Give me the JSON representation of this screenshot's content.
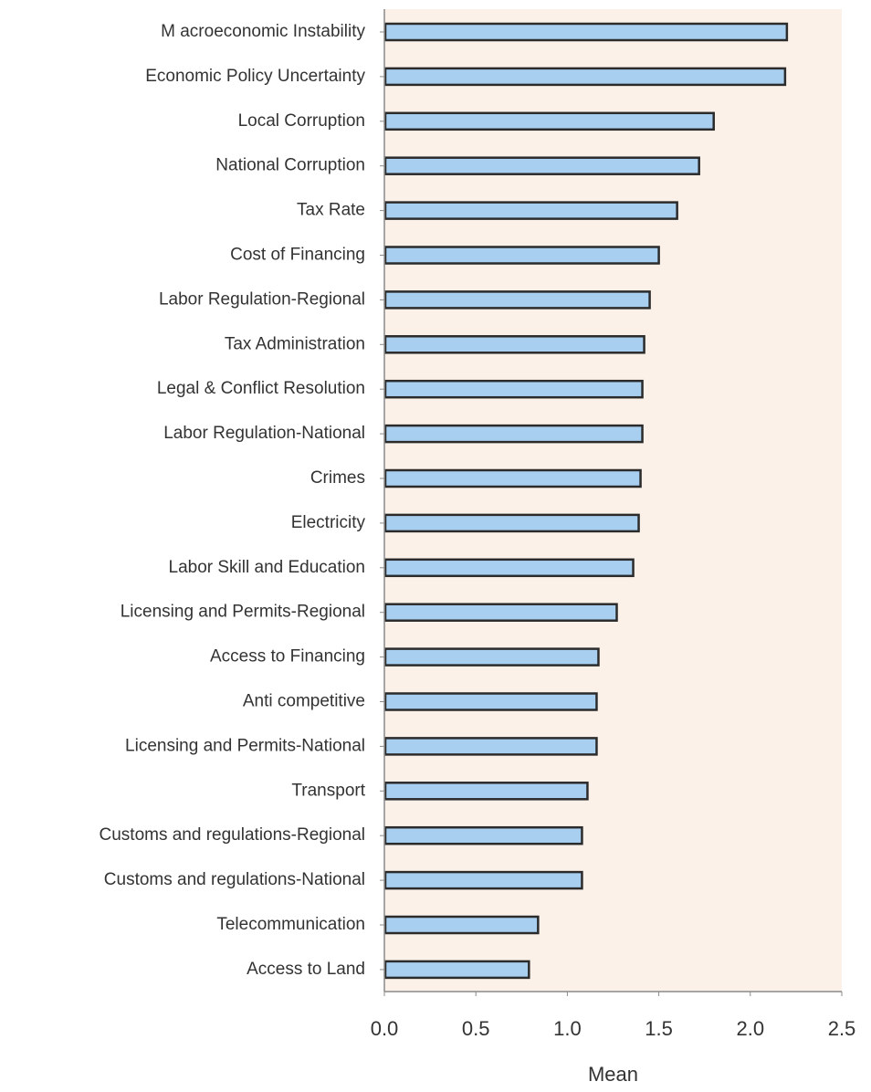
{
  "colors": {
    "plot_background": "#fbf1e8",
    "bar_fill": "#a9cff0",
    "bar_stroke": "#2b2b2b",
    "axis": "#8a8a8a",
    "text": "#333333"
  },
  "chart_data": {
    "type": "bar",
    "orientation": "horizontal",
    "categories": [
      "M acroeconomic Instability",
      "Economic Policy Uncertainty",
      "Local Corruption",
      "National Corruption",
      "Tax Rate",
      "Cost of Financing",
      "Labor Regulation-Regional",
      "Tax Administration",
      "Legal & Conflict Resolution",
      "Labor Regulation-National",
      "Crimes",
      "Electricity",
      "Labor Skill and Education",
      "Licensing and Permits-Regional",
      "Access to Financing",
      "Anti competitive",
      "Licensing and Permits-National",
      "Transport",
      "Customs and regulations-Regional",
      "Customs and regulations-National",
      "Telecommunication",
      "Access to Land"
    ],
    "values": [
      2.2,
      2.19,
      1.8,
      1.72,
      1.6,
      1.5,
      1.45,
      1.42,
      1.41,
      1.41,
      1.4,
      1.39,
      1.36,
      1.27,
      1.17,
      1.16,
      1.16,
      1.11,
      1.08,
      1.08,
      0.84,
      0.79
    ],
    "xlim": [
      0,
      2.5
    ],
    "xticks": [
      "0.0",
      "0.5",
      "1.0",
      "1.5",
      "2.0",
      "2.5"
    ],
    "xlabel": "Mean",
    "ylabel": "",
    "title": "",
    "grid": false,
    "legend": "none"
  }
}
